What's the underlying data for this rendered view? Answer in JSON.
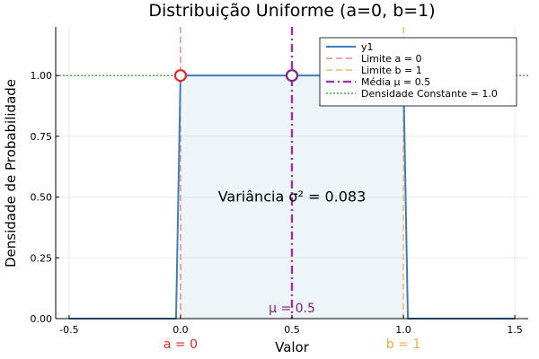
{
  "chart_data": {
    "type": "line",
    "title": "Distribuição Uniforme (a=0, b=1)",
    "xlabel": "Valor",
    "ylabel": "Densidade de Probabilidade",
    "xlim": [
      -0.56,
      1.56
    ],
    "ylim": [
      0,
      1.2
    ],
    "x_ticks": [
      -0.5,
      0.0,
      0.5,
      1.0,
      1.5
    ],
    "x_tick_labels": [
      "-0.5",
      "0.0",
      "0.5",
      "1.0",
      "1.5"
    ],
    "y_ticks": [
      0,
      0.25,
      0.5,
      0.75,
      1.0
    ],
    "y_tick_labels": [
      "0.00",
      "0.25",
      "0.50",
      "0.75",
      "1.00"
    ],
    "grid": true,
    "legend_position": "top-right",
    "series": [
      {
        "name": "y1",
        "color": "#3a7ebf",
        "style": "solid",
        "points": [
          [
            -0.5,
            0
          ],
          [
            -0.02,
            0
          ],
          [
            0.0,
            1.0
          ],
          [
            1.0,
            1.0
          ],
          [
            1.02,
            0
          ],
          [
            1.5,
            0
          ]
        ]
      }
    ],
    "fill": {
      "x_from": 0.0,
      "x_to": 1.0,
      "y": 1.0,
      "color": "#a9cfe0"
    },
    "reference_lines": [
      {
        "name": "Limite a = 0",
        "orientation": "vertical",
        "value": 0.0,
        "color": "#e8706a",
        "style": "dash"
      },
      {
        "name": "Limite b = 1",
        "orientation": "vertical",
        "value": 1.0,
        "color": "#f5a742",
        "style": "dash"
      },
      {
        "name": "Média μ = 0.5",
        "orientation": "vertical",
        "value": 0.5,
        "color": "#9b30a8",
        "style": "dashdot"
      },
      {
        "name": "Densidade Constante = 1.0",
        "orientation": "horizontal",
        "value": 1.0,
        "color": "#1e8f1e",
        "style": "dot"
      }
    ],
    "markers": [
      {
        "x": 0.0,
        "y": 1.0,
        "color": "#e8262a"
      },
      {
        "x": 0.5,
        "y": 1.0,
        "color": "#7e1f87"
      }
    ],
    "annotations": [
      {
        "text": "Variância σ² = 0.083",
        "x": 0.5,
        "y": 0.5,
        "color": "#000000"
      },
      {
        "text": "μ = 0.5",
        "x": 0.5,
        "y": 0.045,
        "color": "#7e1f87"
      },
      {
        "text": "a = 0",
        "x": 0.0,
        "below_axis": true,
        "color": "#e8262a"
      },
      {
        "text": "b = 1",
        "x": 1.0,
        "below_axis": true,
        "color": "#f5a742"
      }
    ]
  }
}
